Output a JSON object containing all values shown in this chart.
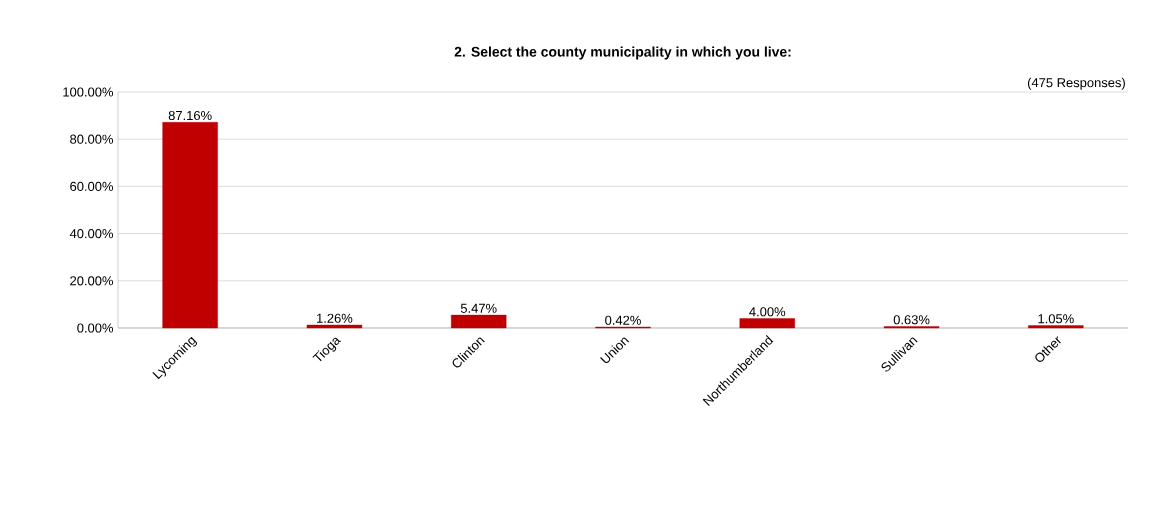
{
  "chart_data": {
    "type": "bar",
    "title": "2.  Select the county municipality in which you live:",
    "annotations": [
      "(475 Responses)"
    ],
    "categories": [
      "Lycoming",
      "Tioga",
      "Clinton",
      "Union",
      "Northumberland",
      "Sullivan",
      "Other"
    ],
    "values": [
      87.16,
      1.26,
      5.47,
      0.42,
      4.0,
      0.63,
      1.05
    ],
    "value_labels": [
      "87.16%",
      "1.26%",
      "5.47%",
      "0.42%",
      "4.00%",
      "0.63%",
      "1.05%"
    ],
    "color": "#c00000",
    "ylim": [
      0,
      100
    ],
    "yticks": [
      {
        "value": 0,
        "label": "0.00%"
      },
      {
        "value": 20,
        "label": "20.00%"
      },
      {
        "value": 40,
        "label": "40.00%"
      },
      {
        "value": 60,
        "label": "60.00%"
      },
      {
        "value": 80,
        "label": "80.00%"
      },
      {
        "value": 100,
        "label": "100.00%"
      }
    ],
    "grid": "y"
  }
}
